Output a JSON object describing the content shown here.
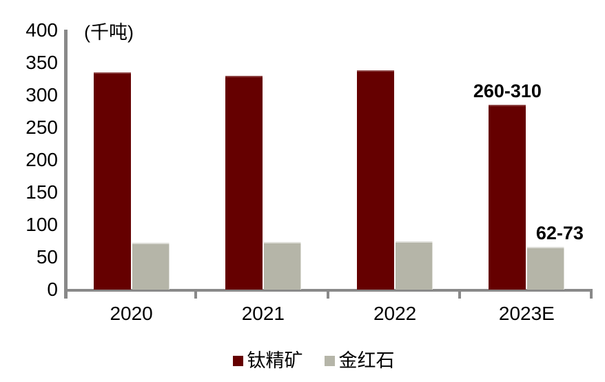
{
  "chart_data": {
    "type": "bar",
    "title": "",
    "unit_label": "(千吨)",
    "categories": [
      "2020",
      "2021",
      "2022",
      "2023E"
    ],
    "series": [
      {
        "name": "钛精矿",
        "color": "#650000",
        "values": [
          335,
          330,
          338,
          285
        ],
        "value_labels": [
          "",
          "",
          "",
          "260-310"
        ]
      },
      {
        "name": "金红石",
        "color": "#B5B5A8",
        "values": [
          72,
          73,
          75,
          66
        ],
        "value_labels": [
          "",
          "",
          "",
          "62-73"
        ]
      }
    ],
    "ylim": [
      0,
      400
    ],
    "yticks": [
      0,
      50,
      100,
      150,
      200,
      250,
      300,
      350,
      400
    ],
    "grid": false,
    "legend_position": "bottom",
    "axis_color": "#898989",
    "text_color": "#000000"
  }
}
